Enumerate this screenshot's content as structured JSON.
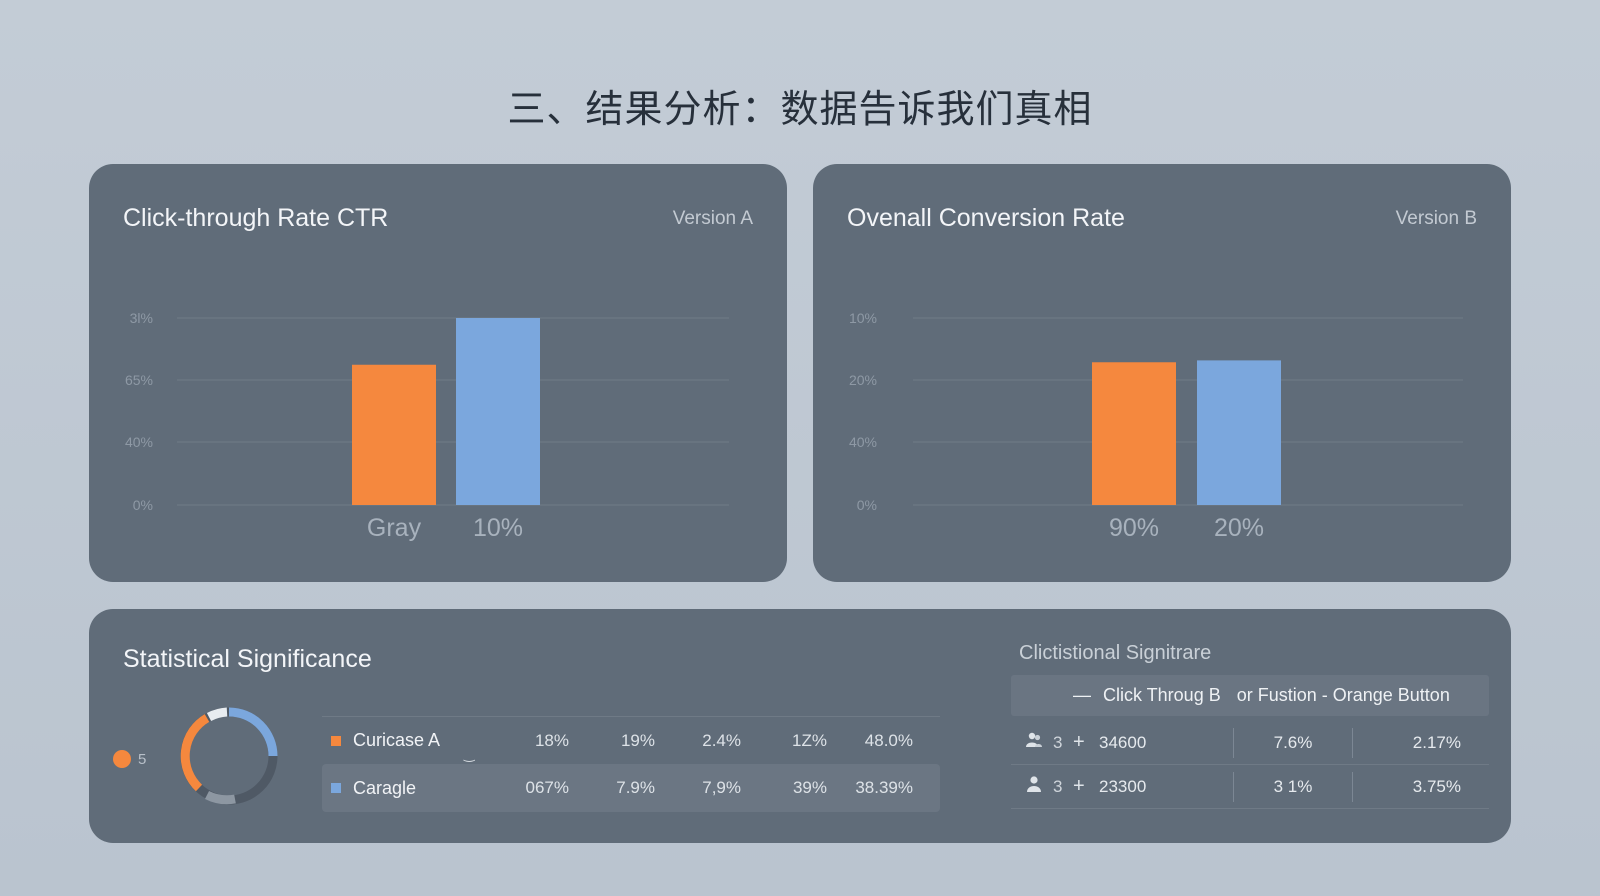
{
  "page": {
    "title": "三、结果分析：数据告诉我们真相"
  },
  "chart_data": [
    {
      "type": "bar",
      "title": "Click-through Rate  CTR",
      "tag": "Version A",
      "categories": [
        "Gray",
        "10%"
      ],
      "y_tick_labels": [
        "3l%",
        "65%",
        "40%",
        "0%"
      ],
      "values": [
        22.5,
        30
      ],
      "ylim": [
        0,
        30
      ],
      "grid": true,
      "colors": [
        "#f5883e",
        "#7ba7dd"
      ]
    },
    {
      "type": "bar",
      "title": "Ovenall Conversion Rate",
      "tag": "Version B",
      "categories": [
        "90%",
        "20%"
      ],
      "y_tick_labels": [
        "10%",
        "20%",
        "40%",
        "0%"
      ],
      "values": [
        22.9,
        23.2
      ],
      "ylim": [
        0,
        30
      ],
      "grid": true,
      "colors": [
        "#f5883e",
        "#7ba7dd"
      ]
    }
  ],
  "significance": {
    "title": "Statistical Significance",
    "legend_label": "5",
    "donut": {
      "orange_color": "#f5883e",
      "blue_color": "#7ba7dd"
    },
    "rows": [
      {
        "label": "Curicase A",
        "color": "#f5883e",
        "cells": [
          "18%",
          "19%",
          "2.4%",
          "1Z%",
          "48.0%"
        ]
      },
      {
        "label": "Caragle",
        "color": "#7ba7dd",
        "cells": [
          "067%",
          "7.9%",
          "7,9%",
          "39%",
          "38.39%"
        ]
      }
    ]
  },
  "right_panel": {
    "title": "Clictistional Signitrare",
    "header": {
      "arrow": "—",
      "col1": "Click Throug B",
      "col2": "or Fustion - Orange Button"
    },
    "rows": [
      {
        "icon": "group-icon",
        "count": "3",
        "plus": "+",
        "value": "34600",
        "c1": "7.6%",
        "c2": "2.17%"
      },
      {
        "icon": "user-icon",
        "count": "3",
        "plus": "+",
        "value": "23300",
        "c1": "3 1%",
        "c2": "3.75%"
      }
    ]
  }
}
